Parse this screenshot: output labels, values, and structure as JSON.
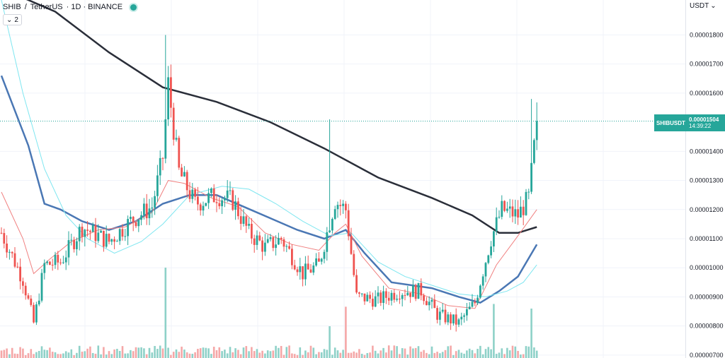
{
  "header": {
    "symbol": "SHIB",
    "separator": "/",
    "quote": "TetherUS",
    "interval_exchange": "· 1D · BINANCE"
  },
  "legend_toggle": {
    "icon": "chevron-down-icon",
    "label": "2"
  },
  "currency_select": {
    "label": "USDT",
    "icon": "chevron-down-icon"
  },
  "price_tag": {
    "symbol": "SHIBUSDT",
    "price": "0.00001504",
    "countdown": "14:39:22"
  },
  "colors": {
    "up": "#26a69a",
    "down": "#ef5350",
    "ma_long": "#2a2e39",
    "ma_mid": "#4a77b4",
    "ma_short": "#f08080",
    "ma_light": "#7ee6f0",
    "vol_up": "#8ed1c8",
    "vol_down": "#f5a7a7"
  },
  "chart_data": {
    "type": "candlestick",
    "ylim": [
      6.9e-06,
      1.92e-05
    ],
    "y_ticks": [
      "0.00001800",
      "0.00001700",
      "0.00001600",
      "0.00001400",
      "0.00001300",
      "0.00001200",
      "0.00001100",
      "0.00001000",
      "0.00000900",
      "0.00000800",
      "0.00000700"
    ],
    "y_tick_values": [
      1.8e-05,
      1.7e-05,
      1.6e-05,
      1.4e-05,
      1.3e-05,
      1.2e-05,
      1.1e-05,
      1e-05,
      9e-06,
      8e-06,
      7e-06
    ],
    "grid": true,
    "last_price": 1.504e-05,
    "candles_per_day": 1,
    "key_points": [
      [
        0,
        1.12e-05
      ],
      [
        8,
        9.6e-06
      ],
      [
        12,
        8.1e-06
      ],
      [
        16,
        1.01e-05
      ],
      [
        22,
        1.02e-05
      ],
      [
        30,
        1.14e-05
      ],
      [
        40,
        1.09e-05
      ],
      [
        48,
        1.16e-05
      ],
      [
        56,
        1.21e-05
      ],
      [
        60,
        1.38e-05
      ],
      [
        62,
        1.63e-05
      ],
      [
        66,
        1.33e-05
      ],
      [
        72,
        1.22e-05
      ],
      [
        80,
        1.25e-05
      ],
      [
        86,
        1.23e-05
      ],
      [
        92,
        1.12e-05
      ],
      [
        98,
        1.07e-05
      ],
      [
        104,
        1.1e-05
      ],
      [
        112,
        9.8e-06
      ],
      [
        118,
        1.01e-05
      ],
      [
        124,
        1.23e-05
      ],
      [
        128,
        1.2e-05
      ],
      [
        132,
        9e-06
      ],
      [
        140,
        8.9e-06
      ],
      [
        148,
        9.2e-06
      ],
      [
        156,
        9.2e-06
      ],
      [
        162,
        8.4e-06
      ],
      [
        170,
        8.1e-06
      ],
      [
        176,
        8.8e-06
      ],
      [
        182,
        1.1e-05
      ],
      [
        186,
        1.2e-05
      ],
      [
        192,
        1.18e-05
      ],
      [
        196,
        1.24e-05
      ],
      [
        199,
        1.5e-05
      ]
    ],
    "spikes": [
      [
        61,
        1.8e-05
      ],
      [
        122,
        1.51e-05
      ],
      [
        197,
        1.58e-05
      ]
    ],
    "series": [
      {
        "name": "",
        "color": "#2a2e39",
        "points": [
          [
            0,
            1.96e-05
          ],
          [
            20,
            1.88e-05
          ],
          [
            40,
            1.74e-05
          ],
          [
            60,
            1.62e-05
          ],
          [
            80,
            1.57e-05
          ],
          [
            100,
            1.5e-05
          ],
          [
            120,
            1.41e-05
          ],
          [
            140,
            1.31e-05
          ],
          [
            160,
            1.24e-05
          ],
          [
            175,
            1.18e-05
          ],
          [
            185,
            1.12e-05
          ],
          [
            192,
            1.12e-05
          ],
          [
            199,
            1.14e-05
          ]
        ]
      },
      {
        "name": "",
        "color": "#4a77b4",
        "points": [
          [
            0,
            1.66e-05
          ],
          [
            10,
            1.42e-05
          ],
          [
            16,
            1.22e-05
          ],
          [
            22,
            1.2e-05
          ],
          [
            30,
            1.16e-05
          ],
          [
            40,
            1.13e-05
          ],
          [
            50,
            1.16e-05
          ],
          [
            60,
            1.22e-05
          ],
          [
            70,
            1.25e-05
          ],
          [
            80,
            1.25e-05
          ],
          [
            90,
            1.21e-05
          ],
          [
            100,
            1.17e-05
          ],
          [
            110,
            1.13e-05
          ],
          [
            120,
            1.1e-05
          ],
          [
            128,
            1.13e-05
          ],
          [
            135,
            1.05e-05
          ],
          [
            145,
            9.5e-06
          ],
          [
            160,
            9.3e-06
          ],
          [
            170,
            9e-06
          ],
          [
            178,
            8.8e-06
          ],
          [
            185,
            9.2e-06
          ],
          [
            192,
            9.7e-06
          ],
          [
            199,
            1.08e-05
          ]
        ]
      },
      {
        "name": "",
        "color": "#f08080",
        "points": [
          [
            0,
            1.26e-05
          ],
          [
            8,
            1.1e-05
          ],
          [
            12,
            9.8e-06
          ],
          [
            18,
            1.03e-05
          ],
          [
            26,
            1.09e-05
          ],
          [
            36,
            1.13e-05
          ],
          [
            46,
            1.14e-05
          ],
          [
            56,
            1.19e-05
          ],
          [
            62,
            1.3e-05
          ],
          [
            68,
            1.29e-05
          ],
          [
            78,
            1.24e-05
          ],
          [
            88,
            1.21e-05
          ],
          [
            98,
            1.12e-05
          ],
          [
            108,
            1.08e-05
          ],
          [
            118,
            1.06e-05
          ],
          [
            124,
            1.12e-05
          ],
          [
            128,
            1.15e-05
          ],
          [
            134,
            1.04e-05
          ],
          [
            144,
            9.3e-06
          ],
          [
            156,
            9.1e-06
          ],
          [
            166,
            8.7e-06
          ],
          [
            176,
            8.6e-06
          ],
          [
            184,
            1.01e-05
          ],
          [
            192,
            1.11e-05
          ],
          [
            199,
            1.2e-05
          ]
        ]
      },
      {
        "name": "",
        "color": "#7ee6f0",
        "points": [
          [
            0,
            1.92e-05
          ],
          [
            8,
            1.6e-05
          ],
          [
            16,
            1.34e-05
          ],
          [
            24,
            1.18e-05
          ],
          [
            32,
            1.1e-05
          ],
          [
            42,
            1.05e-05
          ],
          [
            52,
            1.09e-05
          ],
          [
            60,
            1.15e-05
          ],
          [
            70,
            1.25e-05
          ],
          [
            82,
            1.28e-05
          ],
          [
            92,
            1.27e-05
          ],
          [
            102,
            1.22e-05
          ],
          [
            112,
            1.16e-05
          ],
          [
            122,
            1.11e-05
          ],
          [
            130,
            1.12e-05
          ],
          [
            140,
            1.02e-05
          ],
          [
            150,
            9.7e-06
          ],
          [
            160,
            9.4e-06
          ],
          [
            170,
            9.1e-06
          ],
          [
            180,
            9e-06
          ],
          [
            188,
            9.2e-06
          ],
          [
            194,
            9.5e-06
          ],
          [
            199,
            1.01e-05
          ]
        ]
      }
    ]
  }
}
